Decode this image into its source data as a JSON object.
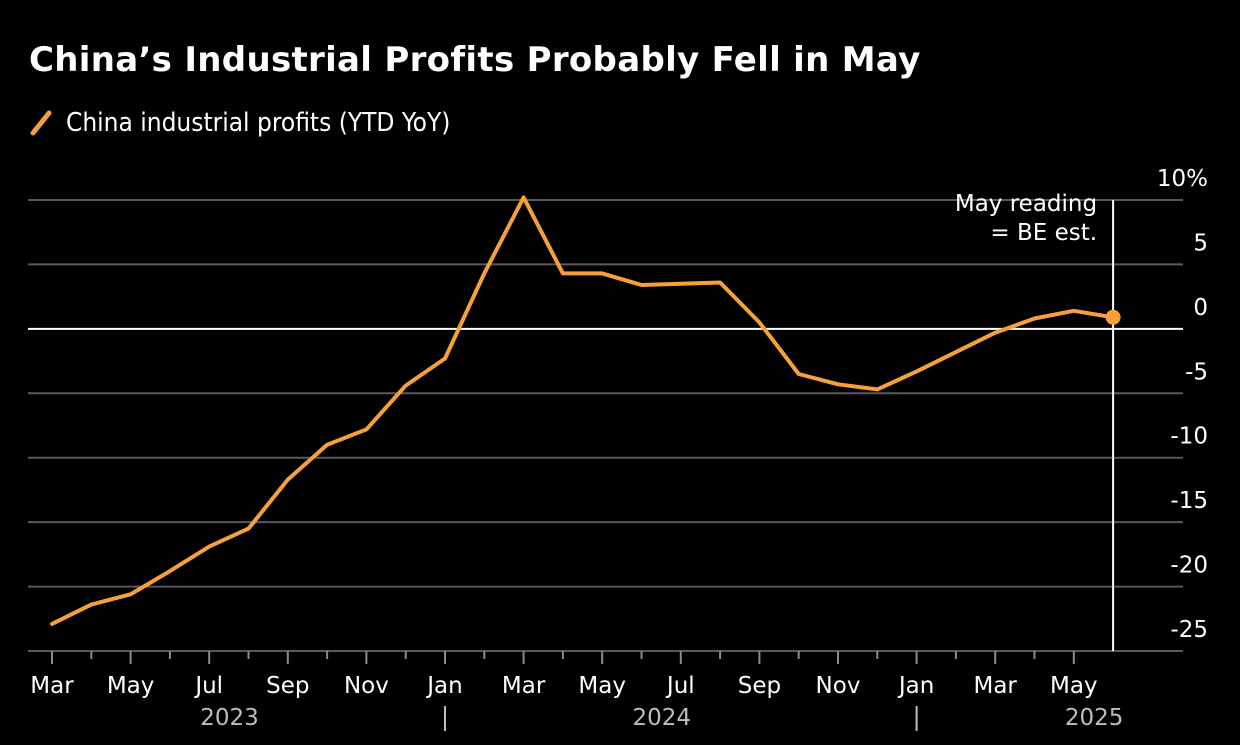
{
  "chart_data": {
    "type": "line",
    "title": "China’s Industrial Profits Probably Fell in May",
    "legend": [
      {
        "name": "China industrial profits (YTD YoY)",
        "color": "#f5a03a"
      }
    ],
    "legend_placement": "top-left",
    "xlabel": "",
    "ylabel": "",
    "y_unit_label": "10%",
    "ylim": [
      -25,
      10
    ],
    "yticks": [
      10,
      5,
      0,
      -5,
      -10,
      -15,
      -20,
      -25
    ],
    "ytick_labels": [
      "10%",
      "5",
      "0",
      "-5",
      "-10",
      "-15",
      "-20",
      "-25"
    ],
    "y_axis_side": "right",
    "grid": true,
    "x_start": "2023-03",
    "x_month_ticks": [
      "Mar",
      "May",
      "Jul",
      "Sep",
      "Nov",
      "Jan",
      "Mar",
      "May",
      "Jul",
      "Sep",
      "Nov",
      "Jan",
      "Mar",
      "May"
    ],
    "x_years": [
      {
        "label": "2023",
        "center_month_index": 5
      },
      {
        "label": "2024",
        "center_month_index": 16
      },
      {
        "label": "2025",
        "center_month_index": 27
      }
    ],
    "year_separators_month_index": [
      10,
      22
    ],
    "series": [
      {
        "name": "China industrial profits (YTD YoY)",
        "color": "#f5a03a",
        "points": [
          {
            "month_index": 0,
            "value": -22.9
          },
          {
            "month_index": 1,
            "value": -21.4
          },
          {
            "month_index": 2,
            "value": -20.6
          },
          {
            "month_index": 3,
            "value": -18.8
          },
          {
            "month_index": 4,
            "value": -16.9
          },
          {
            "month_index": 5,
            "value": -15.5
          },
          {
            "month_index": 6,
            "value": -11.7
          },
          {
            "month_index": 7,
            "value": -9.0
          },
          {
            "month_index": 8,
            "value": -7.8
          },
          {
            "month_index": 9,
            "value": -4.4
          },
          {
            "month_index": 10,
            "value": -2.3
          },
          {
            "month_index": 11,
            "value": 4.3
          },
          {
            "month_index": 12,
            "value": 10.2
          },
          {
            "month_index": 13,
            "value": 4.3
          },
          {
            "month_index": 14,
            "value": 4.3
          },
          {
            "month_index": 15,
            "value": 3.4
          },
          {
            "month_index": 16,
            "value": 3.5
          },
          {
            "month_index": 17,
            "value": 3.6
          },
          {
            "month_index": 18,
            "value": 0.5
          },
          {
            "month_index": 19,
            "value": -3.5
          },
          {
            "month_index": 20,
            "value": -4.3
          },
          {
            "month_index": 21,
            "value": -4.7
          },
          {
            "month_index": 22,
            "value": -3.3
          },
          {
            "month_index": 23,
            "value": -1.8
          },
          {
            "month_index": 24,
            "value": -0.3
          },
          {
            "month_index": 25,
            "value": 0.8
          },
          {
            "month_index": 26,
            "value": 1.4
          },
          {
            "month_index": 27,
            "value": 0.9
          }
        ]
      }
    ],
    "annotation": {
      "lines": [
        "May reading",
        "= BE est."
      ],
      "month_index": 27,
      "marker_value": 0.9
    }
  }
}
